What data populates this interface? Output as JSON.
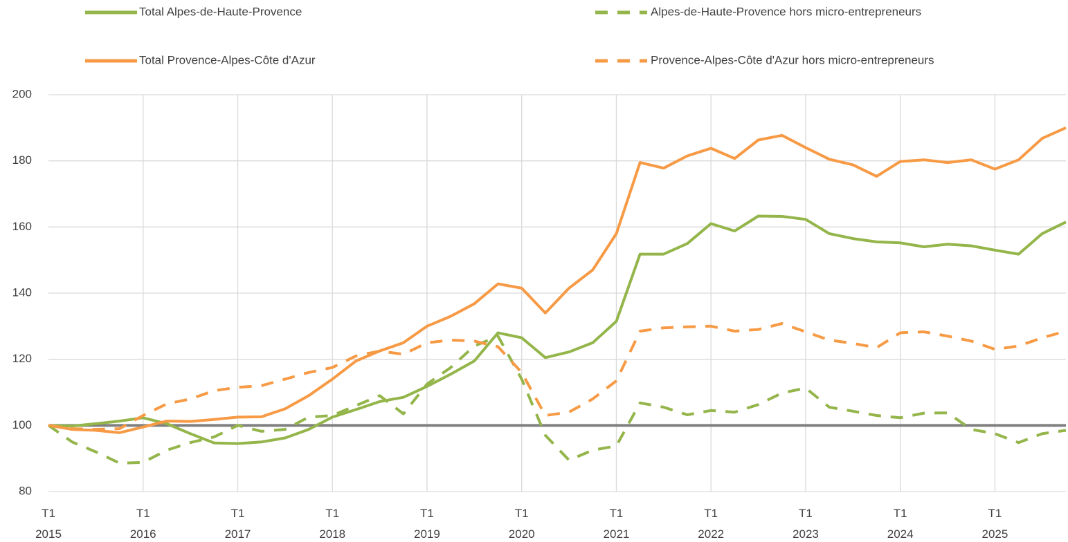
{
  "chart_data": {
    "type": "line",
    "categories": [
      "T1\n2015",
      null,
      null,
      null,
      "T1\n2016",
      null,
      null,
      null,
      "T1\n2017",
      null,
      null,
      null,
      "T1\n2018",
      null,
      null,
      null,
      "T1\n2019",
      null,
      null,
      null,
      "T1\n2020",
      null,
      null,
      null,
      "T1\n2021",
      null,
      null,
      null,
      "T1\n2022",
      null,
      null,
      null,
      "T1\n2023",
      null,
      null,
      null,
      "T1\n2024",
      null,
      null,
      null,
      "T1\n2025",
      null,
      null,
      null
    ],
    "series": [
      {
        "name": "Total Alpes-de-Haute-Provence",
        "color": "#93b54a",
        "dashed": false,
        "values": [
          100,
          99.8,
          100.5,
          101.3,
          102.3,
          100.5,
          97.5,
          94.7,
          94.5,
          95,
          96.2,
          98.8,
          102.5,
          104.8,
          107.2,
          108.5,
          111.8,
          115.5,
          119.5,
          128,
          126.5,
          120.5,
          122.2,
          125,
          131.5,
          151.8,
          151.8,
          155,
          161,
          158.8,
          163.3,
          163.2,
          162.3,
          158,
          156.5,
          155.5,
          155.2,
          154,
          154.8,
          154.3,
          153,
          151.8,
          158,
          161.5
        ]
      },
      {
        "name": "Alpes-de-Haute-Provence hors micro-entrepreneurs",
        "color": "#93b54a",
        "dashed": true,
        "values": [
          100,
          95,
          92,
          88.6,
          88.8,
          92.5,
          94.8,
          96.5,
          100,
          98.2,
          98.8,
          102.5,
          103,
          106,
          109,
          103.5,
          112.5,
          117.5,
          124,
          127,
          114,
          97,
          89.5,
          92.5,
          93.8,
          106.8,
          105.5,
          103.2,
          104.5,
          104,
          106.3,
          109.8,
          111.3,
          105.5,
          104.3,
          103,
          102.3,
          103.7,
          103.8,
          98.8,
          97.5,
          94.8,
          97.5,
          98.5
        ]
      },
      {
        "name": "Total Provence-Alpes-Côte d'Azur",
        "color": "#f79a45",
        "dashed": false,
        "values": [
          100,
          98.8,
          98.5,
          97.8,
          99.5,
          101.3,
          101.2,
          101.8,
          102.5,
          102.6,
          105,
          109,
          114,
          119.5,
          122.5,
          125,
          130,
          133,
          136.8,
          142.8,
          141.5,
          134,
          141.5,
          147,
          158,
          179.5,
          177.8,
          181.5,
          183.8,
          180.7,
          186.3,
          187.7,
          184,
          180.5,
          178.8,
          175.3,
          179.8,
          180.3,
          179.5,
          180.3,
          177.5,
          180.3,
          186.8,
          190
        ]
      },
      {
        "name": "Provence-Alpes-Côte d'Azur hors micro-entrepreneurs",
        "color": "#f79a45",
        "dashed": true,
        "values": [
          100,
          99,
          98.8,
          99,
          103,
          106.5,
          108,
          110.5,
          111.5,
          112,
          114,
          116,
          117.5,
          121,
          122.5,
          121.5,
          125,
          125.8,
          125.5,
          123.8,
          116,
          103,
          104,
          108,
          113.5,
          128.5,
          129.5,
          129.8,
          130,
          128.5,
          129,
          130.8,
          128.3,
          125.8,
          124.8,
          123.5,
          128,
          128.3,
          127,
          125.5,
          123,
          124,
          126.5,
          128.5
        ]
      }
    ],
    "reference_line": {
      "value": 100,
      "color": "#808080"
    },
    "ylim": [
      80,
      200
    ],
    "yticks": [
      80,
      100,
      120,
      140,
      160,
      180,
      200
    ],
    "grid": true
  }
}
